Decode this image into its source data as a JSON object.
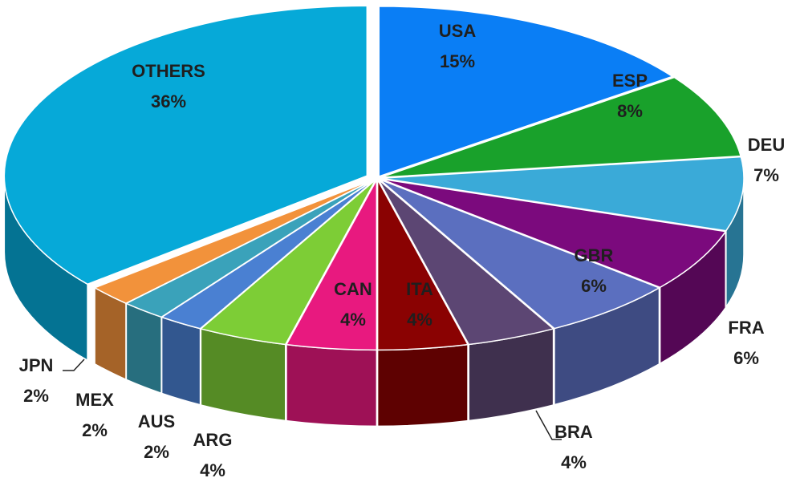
{
  "chart_data": {
    "type": "pie",
    "categories": [
      "USA",
      "ESP",
      "DEU",
      "FRA",
      "GBR",
      "BRA",
      "ITA",
      "CAN",
      "ARG",
      "AUS",
      "MEX",
      "JPN",
      "OTHERS"
    ],
    "values": [
      15,
      8,
      7,
      6,
      6,
      4,
      4,
      4,
      4,
      2,
      2,
      2,
      36
    ],
    "value_labels": [
      "15%",
      "8%",
      "7%",
      "6%",
      "6%",
      "4%",
      "4%",
      "4%",
      "4%",
      "2%",
      "2%",
      "2%",
      "36%"
    ],
    "colors": [
      "#0a7ef5",
      "#19a12b",
      "#3aaad8",
      "#7b0a7d",
      "#5b6fbf",
      "#5c4673",
      "#8a0202",
      "#e8197f",
      "#7dcd36",
      "#4a80d2",
      "#3aa2ba",
      "#f2923b",
      "#06a9d8"
    ]
  }
}
